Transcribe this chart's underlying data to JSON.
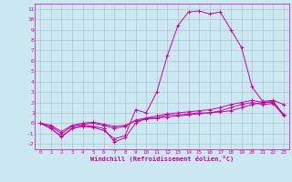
{
  "title": "",
  "xlabel": "Windchill (Refroidissement éolien,°C)",
  "ylabel": "",
  "background_color": "#cce8f0",
  "line_color": "#cc00aa",
  "grid_color": "#aabbd0",
  "xlim": [
    -0.5,
    23.5
  ],
  "ylim": [
    -2.5,
    11.5
  ],
  "xticks": [
    0,
    1,
    2,
    3,
    4,
    5,
    6,
    7,
    8,
    9,
    10,
    11,
    12,
    13,
    14,
    15,
    16,
    17,
    18,
    19,
    20,
    21,
    22,
    23
  ],
  "yticks": [
    -2,
    -1,
    0,
    1,
    2,
    3,
    4,
    5,
    6,
    7,
    8,
    9,
    10,
    11
  ],
  "lines": [
    [
      0.0,
      -0.5,
      -1.3,
      -0.5,
      -0.3,
      -0.4,
      -0.7,
      -1.5,
      -1.2,
      1.3,
      1.0,
      3.0,
      6.5,
      9.4,
      10.7,
      10.8,
      10.5,
      10.7,
      9.0,
      7.3,
      3.5,
      2.1,
      2.2,
      1.8
    ],
    [
      0.0,
      -0.5,
      -1.3,
      -0.5,
      -0.2,
      -0.3,
      -0.5,
      -1.8,
      -1.4,
      0.0,
      0.5,
      0.5,
      0.8,
      0.8,
      0.9,
      1.0,
      1.0,
      1.1,
      1.2,
      1.5,
      1.8,
      2.0,
      2.0,
      0.8
    ],
    [
      0.0,
      -0.3,
      -1.0,
      -0.3,
      -0.1,
      0.0,
      -0.2,
      -0.5,
      -0.3,
      0.3,
      0.5,
      0.7,
      0.9,
      1.0,
      1.1,
      1.2,
      1.3,
      1.5,
      1.8,
      2.0,
      2.2,
      2.0,
      2.1,
      0.8
    ],
    [
      0.0,
      -0.2,
      -0.8,
      -0.2,
      0.0,
      0.1,
      -0.1,
      -0.3,
      -0.2,
      0.2,
      0.4,
      0.5,
      0.6,
      0.7,
      0.8,
      0.9,
      1.0,
      1.2,
      1.5,
      1.8,
      2.0,
      1.8,
      1.9,
      0.7
    ]
  ]
}
